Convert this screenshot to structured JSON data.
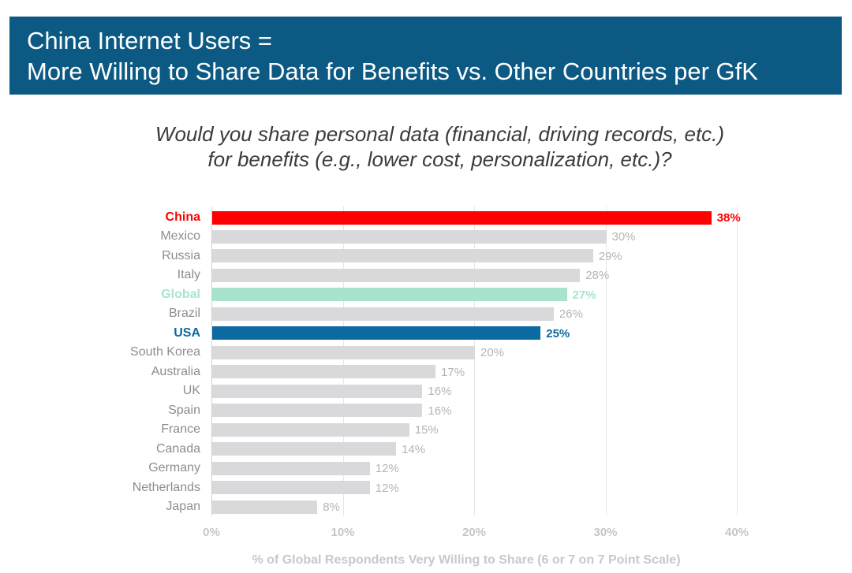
{
  "title_line1": "China Internet Users =",
  "title_line2": "More Willing to Share Data for Benefits vs. Other Countries per GfK",
  "question_line1": "Would you share personal data (financial, driving records, etc.)",
  "question_line2": "for benefits (e.g., lower cost, personalization, etc.)?",
  "chart_data": {
    "type": "bar",
    "orientation": "horizontal",
    "categories": [
      "China",
      "Mexico",
      "Russia",
      "Italy",
      "Global",
      "Brazil",
      "USA",
      "South Korea",
      "Australia",
      "UK",
      "Spain",
      "France",
      "Canada",
      "Germany",
      "Netherlands",
      "Japan"
    ],
    "values": [
      38,
      30,
      29,
      28,
      27,
      26,
      25,
      20,
      17,
      16,
      16,
      15,
      14,
      12,
      12,
      8
    ],
    "value_labels": [
      "38%",
      "30%",
      "29%",
      "28%",
      "27%",
      "26%",
      "25%",
      "20%",
      "17%",
      "16%",
      "16%",
      "15%",
      "14%",
      "12%",
      "12%",
      "8%"
    ],
    "highlight": {
      "China": "#ff0000",
      "Global": "#a8e4cc",
      "USA": "#0b6aa0"
    },
    "default_color": "#d9d8da",
    "xlabel": "% of Global Respondents Very Willing to Share (6 or 7 on 7 Point Scale)",
    "xticks": [
      0,
      10,
      20,
      30,
      40
    ],
    "xtick_labels": [
      "0%",
      "10%",
      "20%",
      "30%",
      "40%"
    ],
    "xlim": [
      0,
      40
    ],
    "grid": true
  }
}
